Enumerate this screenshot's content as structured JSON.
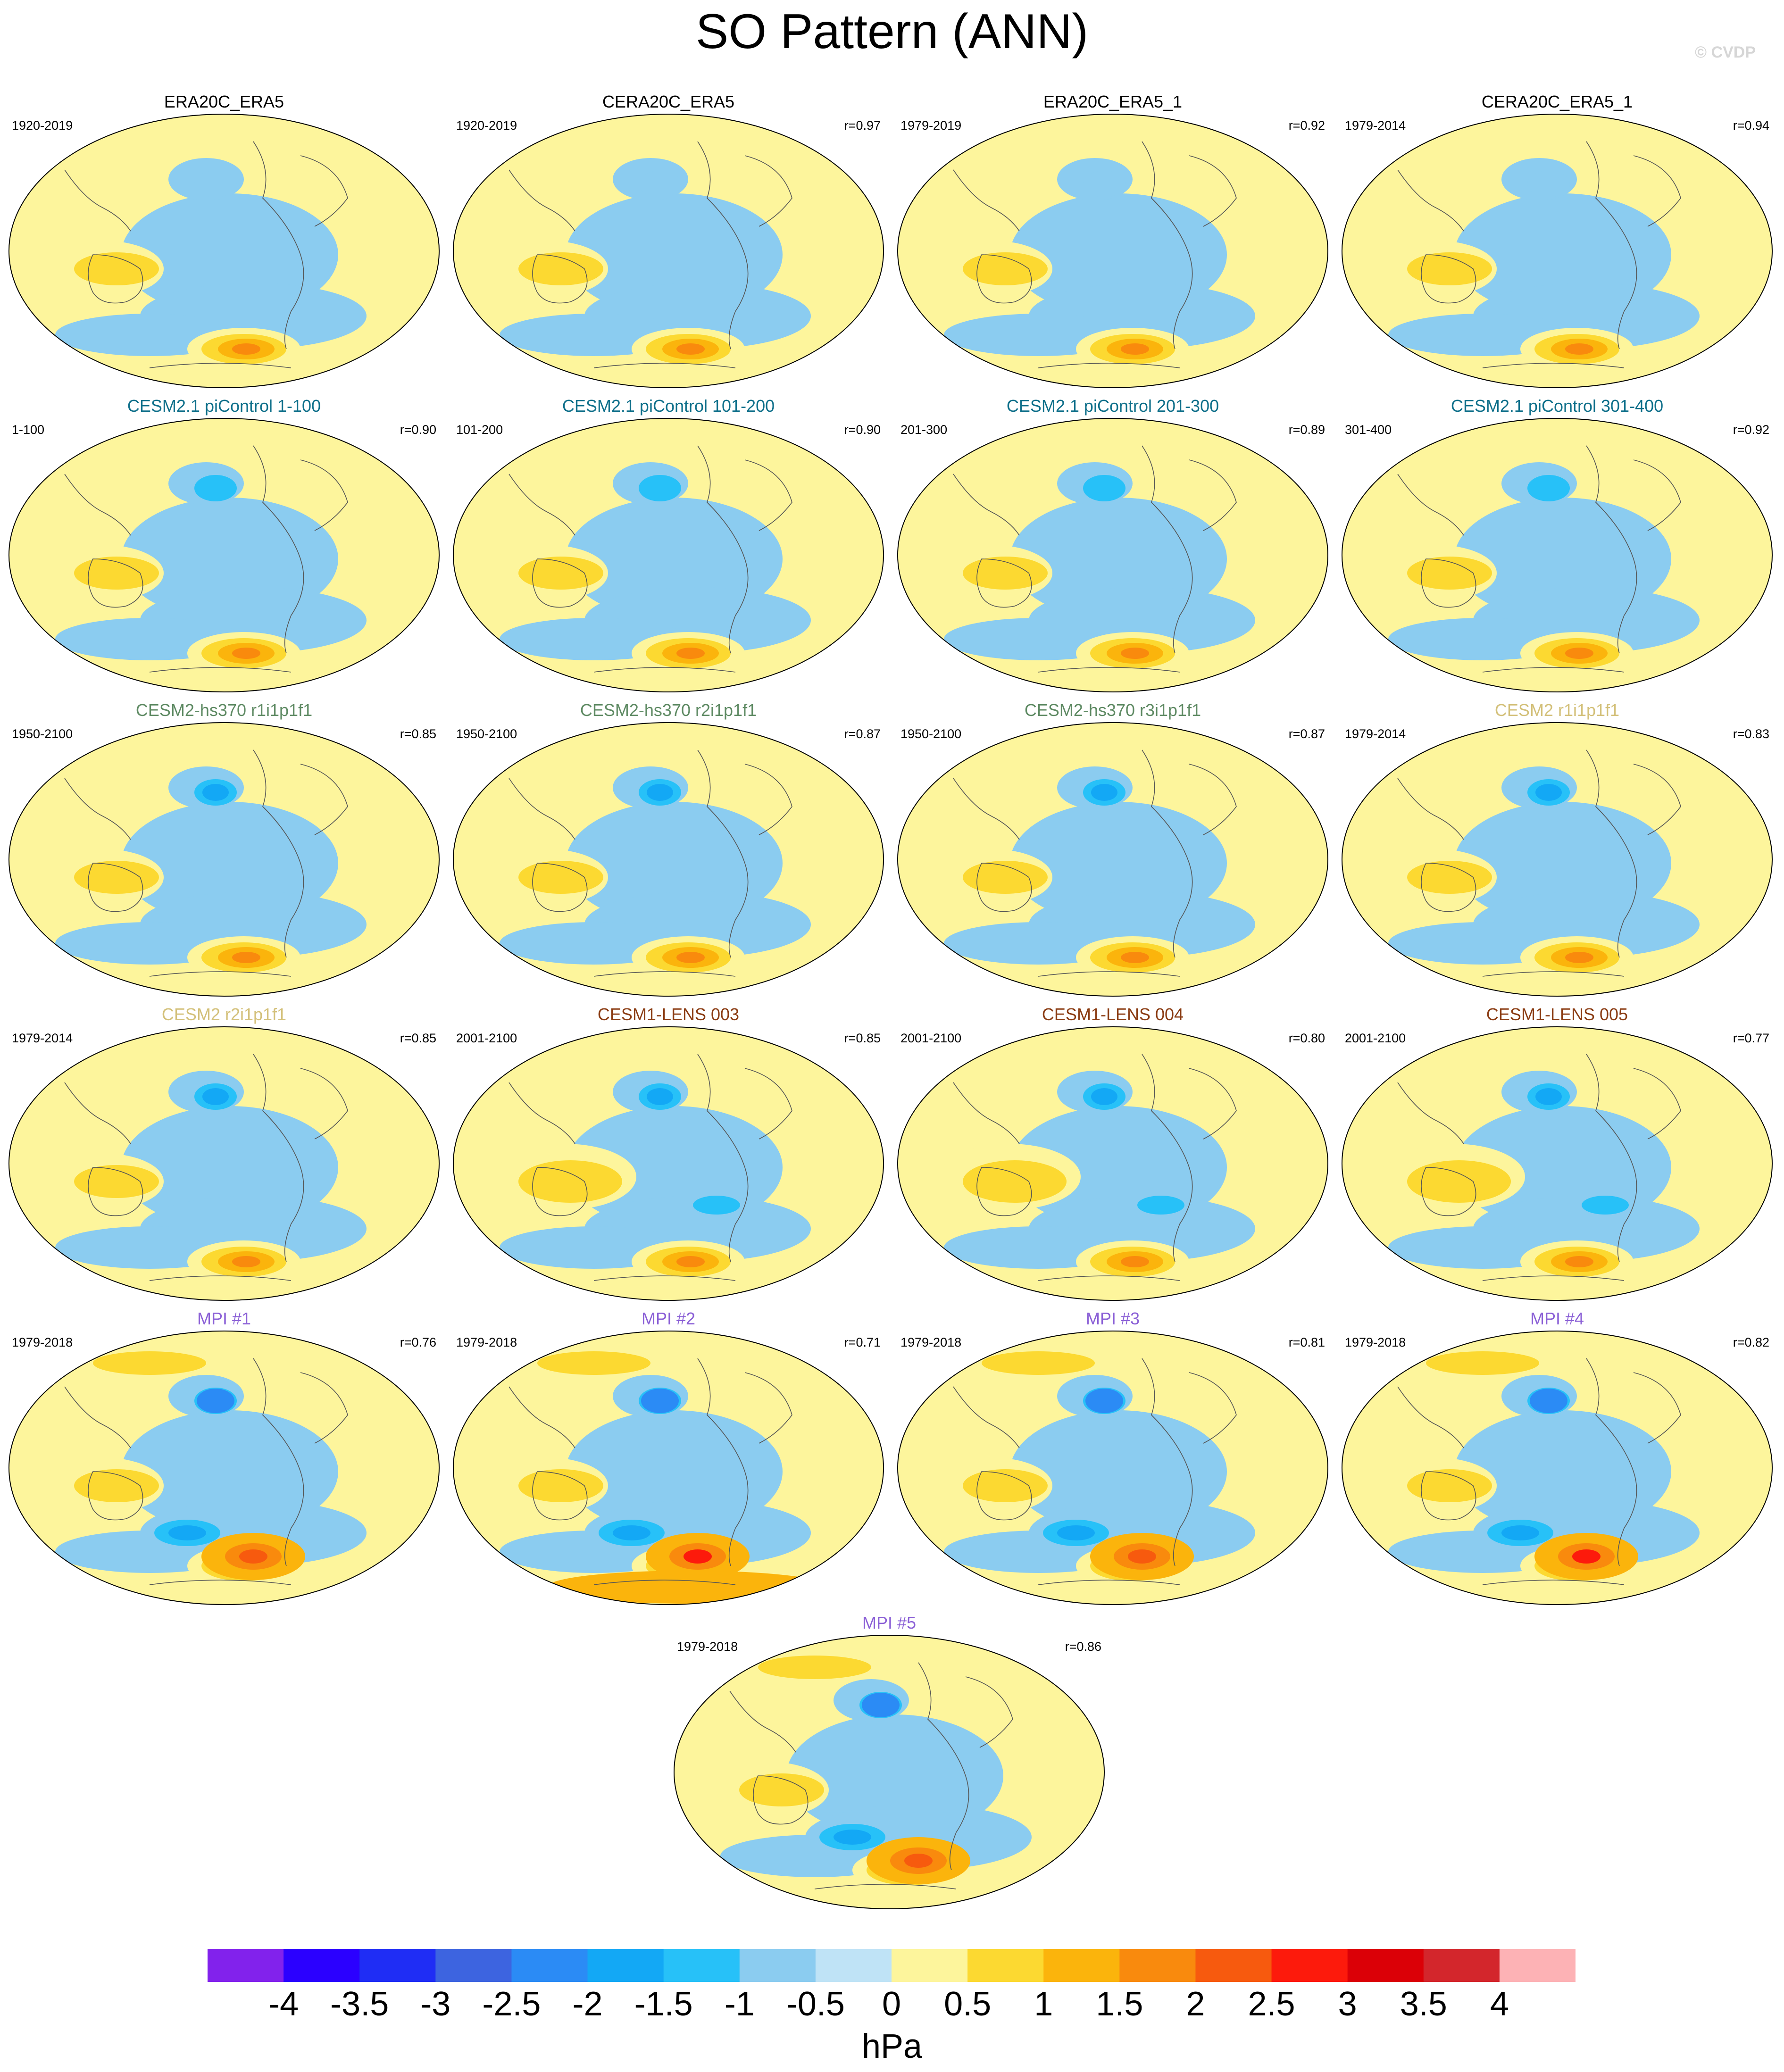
{
  "title": "SO Pattern (ANN)",
  "watermark": "© CVDP",
  "units": "hPa",
  "colorbar": {
    "labels": [
      "-4",
      "-3.5",
      "-3",
      "-2.5",
      "-2",
      "-1.5",
      "-1",
      "-0.5",
      "0",
      "0.5",
      "1",
      "1.5",
      "2",
      "2.5",
      "3",
      "3.5",
      "4"
    ],
    "colors": [
      "#8222ec",
      "#2b00ff",
      "#1f2df5",
      "#3d64e0",
      "#2b8bf5",
      "#13a8f5",
      "#27c1f8",
      "#8bccf0",
      "#bfe3f6",
      "#fdf59c",
      "#fcd931",
      "#fbb40c",
      "#f98a0d",
      "#f75a0e",
      "#fd1a0c",
      "#db0007",
      "#d3262c",
      "#fdb2b5"
    ]
  },
  "panels": [
    {
      "title": "ERA20C_ERA5",
      "title_color": "#000000",
      "period": "1920-2019",
      "r": ""
    },
    {
      "title": "CERA20C_ERA5",
      "title_color": "#000000",
      "period": "1920-2019",
      "r": "r=0.97"
    },
    {
      "title": "ERA20C_ERA5_1",
      "title_color": "#000000",
      "period": "1979-2019",
      "r": "r=0.92"
    },
    {
      "title": "CERA20C_ERA5_1",
      "title_color": "#000000",
      "period": "1979-2014",
      "r": "r=0.94"
    },
    {
      "title": "CESM2.1 piControl 1-100",
      "title_color": "#0e6f8a",
      "period": "1-100",
      "r": "r=0.90"
    },
    {
      "title": "CESM2.1 piControl 101-200",
      "title_color": "#0e6f8a",
      "period": "101-200",
      "r": "r=0.90"
    },
    {
      "title": "CESM2.1 piControl 201-300",
      "title_color": "#0e6f8a",
      "period": "201-300",
      "r": "r=0.89"
    },
    {
      "title": "CESM2.1 piControl 301-400",
      "title_color": "#0e6f8a",
      "period": "301-400",
      "r": "r=0.92"
    },
    {
      "title": "CESM2-hs370 r1i1p1f1",
      "title_color": "#5e8a63",
      "period": "1950-2100",
      "r": "r=0.85"
    },
    {
      "title": "CESM2-hs370 r2i1p1f1",
      "title_color": "#5e8a63",
      "period": "1950-2100",
      "r": "r=0.87"
    },
    {
      "title": "CESM2-hs370 r3i1p1f1",
      "title_color": "#5e8a63",
      "period": "1950-2100",
      "r": "r=0.87"
    },
    {
      "title": "CESM2 r1i1p1f1",
      "title_color": "#d3c079",
      "period": "1979-2014",
      "r": "r=0.83"
    },
    {
      "title": "CESM2 r2i1p1f1",
      "title_color": "#d3c079",
      "period": "1979-2014",
      "r": "r=0.85"
    },
    {
      "title": "CESM1-LENS 003",
      "title_color": "#8a3b12",
      "period": "2001-2100",
      "r": "r=0.85"
    },
    {
      "title": "CESM1-LENS 004",
      "title_color": "#8a3b12",
      "period": "2001-2100",
      "r": "r=0.80"
    },
    {
      "title": "CESM1-LENS 005",
      "title_color": "#8a3b12",
      "period": "2001-2100",
      "r": "r=0.77"
    },
    {
      "title": "MPI #1",
      "title_color": "#8a5fd6",
      "period": "1979-2018",
      "r": "r=0.76"
    },
    {
      "title": "MPI #2",
      "title_color": "#8a5fd6",
      "period": "1979-2018",
      "r": "r=0.71"
    },
    {
      "title": "MPI #3",
      "title_color": "#8a5fd6",
      "period": "1979-2018",
      "r": "r=0.81"
    },
    {
      "title": "MPI #4",
      "title_color": "#8a5fd6",
      "period": "1979-2018",
      "r": "r=0.82"
    },
    {
      "title": "MPI #5",
      "title_color": "#8a5fd6",
      "period": "1979-2018",
      "r": "r=0.86"
    }
  ]
}
